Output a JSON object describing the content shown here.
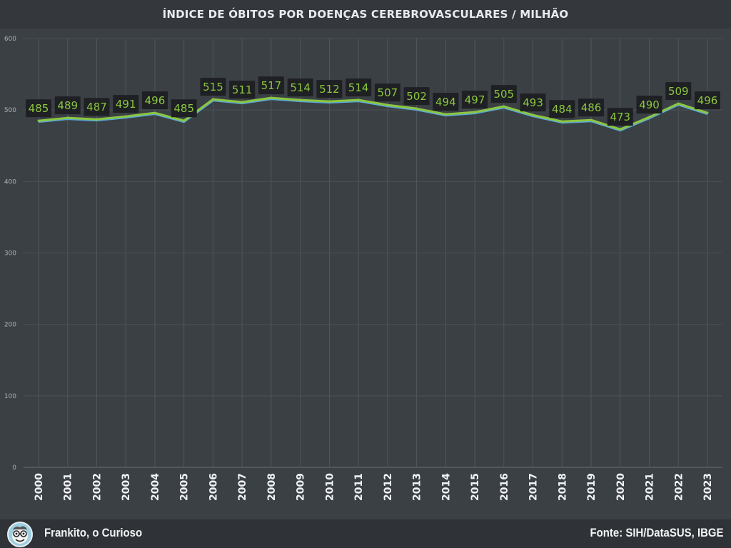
{
  "header": {
    "title": "ÍNDICE DE ÓBITOS POR DOENÇAS CEREBROVASCULARES / MILHÃO"
  },
  "footer": {
    "brand": "Frankito, o Curioso",
    "source": "Fonte: SIH/DataSUS, IBGE"
  },
  "colors": {
    "background": "#3b4045",
    "line": "#8cc63f",
    "line_shadow": "#5aa9d6",
    "label_bg": "#1e2023",
    "label_text": "#8cc63f",
    "grid": "#4a4f54"
  },
  "chart_data": {
    "type": "line",
    "title": "ÍNDICE DE ÓBITOS POR DOENÇAS CEREBROVASCULARES / MILHÃO",
    "categories": [
      "2000",
      "2001",
      "2002",
      "2003",
      "2004",
      "2005",
      "2006",
      "2007",
      "2008",
      "2009",
      "2010",
      "2011",
      "2012",
      "2013",
      "2014",
      "2015",
      "2016",
      "2017",
      "2018",
      "2019",
      "2020",
      "2021",
      "2022",
      "2023"
    ],
    "values": [
      485,
      489,
      487,
      491,
      496,
      485,
      515,
      511,
      517,
      514,
      512,
      514,
      507,
      502,
      494,
      497,
      505,
      493,
      484,
      486,
      473,
      490,
      509,
      496
    ],
    "ylim": [
      0,
      600
    ],
    "yticks": [
      0,
      100,
      200,
      300,
      400,
      500,
      600
    ],
    "grid": true,
    "data_labels": true
  }
}
